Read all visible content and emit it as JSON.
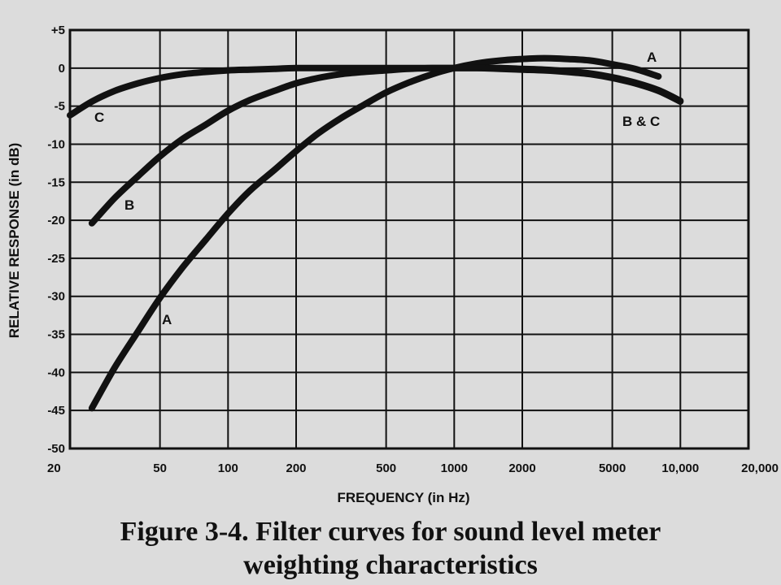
{
  "chart_data": {
    "type": "line",
    "title": "Figure 3-4.  Filter curves for sound level meter",
    "title_line2": "weighting characteristics",
    "xlabel": "FREQUENCY  (in Hz)",
    "ylabel": "RELATIVE RESPONSE   (in dB)",
    "x_scale": "log",
    "xlim": [
      20,
      20000
    ],
    "ylim": [
      -50,
      5
    ],
    "grid": true,
    "x_ticks": [
      20,
      50,
      100,
      200,
      500,
      1000,
      2000,
      5000,
      10000,
      20000
    ],
    "x_tick_labels": [
      "20",
      "50",
      "100",
      "200",
      "500",
      "1000",
      "2000",
      "5000",
      "10,000",
      "20,000"
    ],
    "y_ticks": [
      5,
      0,
      -5,
      -10,
      -15,
      -20,
      -25,
      -30,
      -35,
      -40,
      -45,
      -50
    ],
    "y_tick_labels": [
      "+5",
      "0",
      "-5",
      "-10",
      "-15",
      "-20",
      "-25",
      "-30",
      "-35",
      "-40",
      "-45",
      "-50"
    ],
    "series": [
      {
        "name": "A",
        "x": [
          25,
          31.5,
          40,
          50,
          63,
          80,
          100,
          125,
          160,
          200,
          250,
          315,
          400,
          500,
          630,
          800,
          1000,
          1250,
          1600,
          2000,
          2500,
          3150,
          4000,
          5000,
          6300,
          8000
        ],
        "y": [
          -44.7,
          -39.4,
          -34.6,
          -30.2,
          -26.2,
          -22.5,
          -19.1,
          -16.1,
          -13.4,
          -10.9,
          -8.6,
          -6.6,
          -4.8,
          -3.2,
          -1.9,
          -0.8,
          0.0,
          0.6,
          1.0,
          1.2,
          1.3,
          1.2,
          1.0,
          0.5,
          -0.1,
          -1.1
        ]
      },
      {
        "name": "B",
        "x": [
          25,
          31.5,
          40,
          50,
          63,
          80,
          100,
          125,
          160,
          200,
          250,
          315,
          400,
          500,
          630,
          800,
          1000,
          1250,
          1600,
          2000,
          2500,
          3150,
          4000,
          5000,
          6300,
          8000,
          10000
        ],
        "y": [
          -20.4,
          -17.1,
          -14.2,
          -11.6,
          -9.3,
          -7.4,
          -5.6,
          -4.2,
          -3.0,
          -2.0,
          -1.3,
          -0.8,
          -0.5,
          -0.3,
          -0.1,
          0.0,
          0.0,
          0.0,
          0.0,
          -0.1,
          -0.2,
          -0.4,
          -0.7,
          -1.2,
          -1.9,
          -2.9,
          -4.3
        ]
      },
      {
        "name": "C",
        "x": [
          20,
          25,
          31.5,
          40,
          50,
          63,
          80,
          100,
          125,
          160,
          200,
          250,
          315,
          400,
          500,
          630,
          800,
          1000,
          1250,
          1600,
          2000,
          2500,
          3150,
          4000,
          5000,
          6300,
          8000,
          10000
        ],
        "y": [
          -6.2,
          -4.4,
          -3.0,
          -2.0,
          -1.3,
          -0.8,
          -0.5,
          -0.3,
          -0.2,
          -0.1,
          0.0,
          0.0,
          0.0,
          0.0,
          0.0,
          0.0,
          0.0,
          0.0,
          0.0,
          -0.1,
          -0.2,
          -0.3,
          -0.5,
          -0.8,
          -1.3,
          -2.0,
          -3.0,
          -4.4
        ]
      }
    ],
    "annotations": [
      "A",
      "B",
      "C",
      "A",
      "B & C"
    ],
    "colors": {
      "line": "#111111",
      "grid": "#111111",
      "background": "#dcdcdc"
    }
  }
}
